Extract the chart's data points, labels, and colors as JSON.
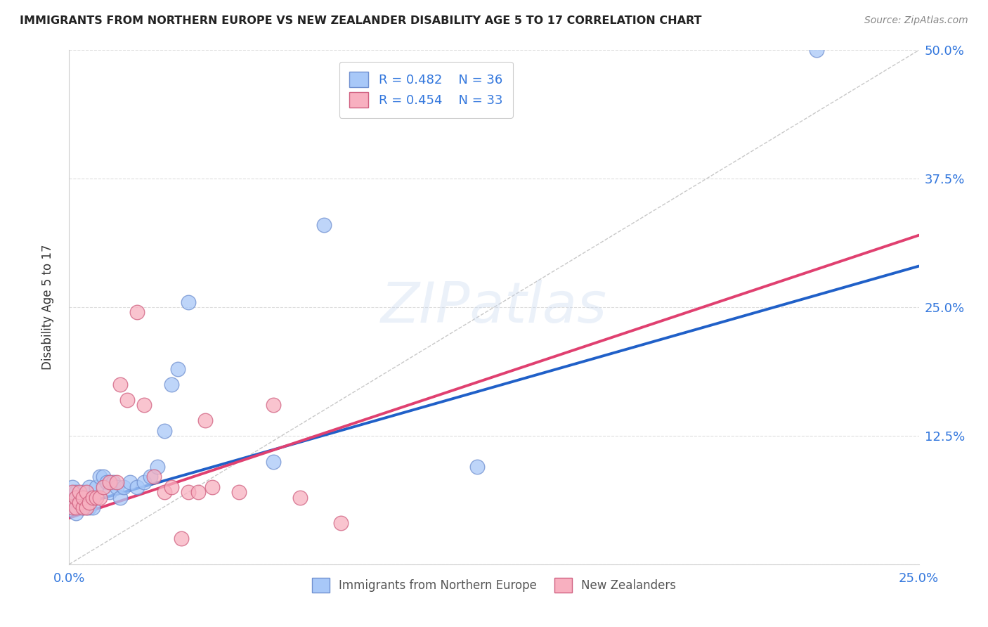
{
  "title": "IMMIGRANTS FROM NORTHERN EUROPE VS NEW ZEALANDER DISABILITY AGE 5 TO 17 CORRELATION CHART",
  "source": "Source: ZipAtlas.com",
  "ylabel": "Disability Age 5 to 17",
  "xlim": [
    0.0,
    0.25
  ],
  "ylim": [
    0.0,
    0.5
  ],
  "blue_scatter_x": [
    0.001,
    0.001,
    0.002,
    0.002,
    0.003,
    0.003,
    0.004,
    0.004,
    0.005,
    0.005,
    0.006,
    0.006,
    0.007,
    0.007,
    0.008,
    0.009,
    0.01,
    0.011,
    0.012,
    0.013,
    0.014,
    0.015,
    0.016,
    0.018,
    0.02,
    0.022,
    0.024,
    0.026,
    0.028,
    0.03,
    0.032,
    0.035,
    0.06,
    0.075,
    0.12,
    0.22
  ],
  "blue_scatter_y": [
    0.055,
    0.075,
    0.05,
    0.07,
    0.06,
    0.065,
    0.055,
    0.07,
    0.065,
    0.055,
    0.075,
    0.055,
    0.065,
    0.055,
    0.075,
    0.085,
    0.085,
    0.08,
    0.07,
    0.08,
    0.075,
    0.065,
    0.075,
    0.08,
    0.075,
    0.08,
    0.085,
    0.095,
    0.13,
    0.175,
    0.19,
    0.255,
    0.1,
    0.33,
    0.095,
    0.5
  ],
  "pink_scatter_x": [
    0.001,
    0.001,
    0.002,
    0.002,
    0.003,
    0.003,
    0.004,
    0.004,
    0.005,
    0.005,
    0.006,
    0.007,
    0.008,
    0.009,
    0.01,
    0.012,
    0.014,
    0.015,
    0.017,
    0.02,
    0.022,
    0.025,
    0.028,
    0.03,
    0.033,
    0.035,
    0.038,
    0.04,
    0.042,
    0.05,
    0.06,
    0.068,
    0.08
  ],
  "pink_scatter_y": [
    0.055,
    0.07,
    0.055,
    0.065,
    0.06,
    0.07,
    0.055,
    0.065,
    0.055,
    0.07,
    0.06,
    0.065,
    0.065,
    0.065,
    0.075,
    0.08,
    0.08,
    0.175,
    0.16,
    0.245,
    0.155,
    0.085,
    0.07,
    0.075,
    0.025,
    0.07,
    0.07,
    0.14,
    0.075,
    0.07,
    0.155,
    0.065,
    0.04
  ],
  "blue_line_x": [
    0.0,
    0.25
  ],
  "blue_line_y": [
    0.055,
    0.29
  ],
  "pink_line_x": [
    0.0,
    0.25
  ],
  "pink_line_y": [
    0.045,
    0.32
  ],
  "diag_line_x": [
    0.0,
    0.25
  ],
  "diag_line_y": [
    0.0,
    0.5
  ],
  "blue_color": "#a8c8f8",
  "pink_color": "#f8b0c0",
  "blue_edge_color": "#7090d0",
  "pink_edge_color": "#d06080",
  "blue_line_color": "#2060c8",
  "pink_line_color": "#e04070",
  "diag_line_color": "#c8c8c8",
  "legend_R1": "R = 0.482",
  "legend_N1": "N = 36",
  "legend_R2": "R = 0.454",
  "legend_N2": "N = 33",
  "legend_text_color": "#3377dd",
  "watermark": "ZIPatlas",
  "background_color": "#ffffff",
  "grid_color": "#dddddd",
  "bottom_legend_color": "#555555"
}
